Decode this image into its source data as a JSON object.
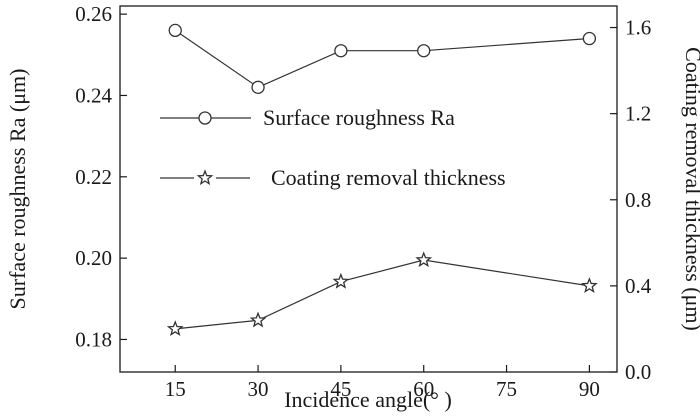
{
  "chart_data": {
    "type": "line",
    "x_axis": {
      "label": "Incidence angle(° )",
      "range": [
        5,
        95
      ],
      "ticks": [
        15,
        30,
        45,
        60,
        75,
        90
      ]
    },
    "y_axis_left": {
      "label": "Surface roughness Ra (μm)",
      "range": [
        0.172,
        0.262
      ],
      "ticks": [
        "0.18",
        "0.20",
        "0.22",
        "0.24",
        "0.26"
      ]
    },
    "y_axis_right": {
      "label": "Coating removal thickness (μm)",
      "range": [
        0.0,
        1.7
      ],
      "ticks": [
        "0.0",
        "0.4",
        "0.8",
        "1.2",
        "1.6"
      ]
    },
    "series": [
      {
        "name": "Surface roughness Ra",
        "axis": "left",
        "marker": "circle",
        "x": [
          15,
          30,
          45,
          60,
          90
        ],
        "values": [
          0.256,
          0.242,
          0.251,
          0.251,
          0.254
        ]
      },
      {
        "name": "Coating removal thickness",
        "axis": "right",
        "marker": "star",
        "x": [
          15,
          30,
          45,
          60,
          90
        ],
        "values": [
          0.2,
          0.24,
          0.42,
          0.52,
          0.4
        ]
      }
    ],
    "grid": false,
    "legend_position": "center"
  }
}
